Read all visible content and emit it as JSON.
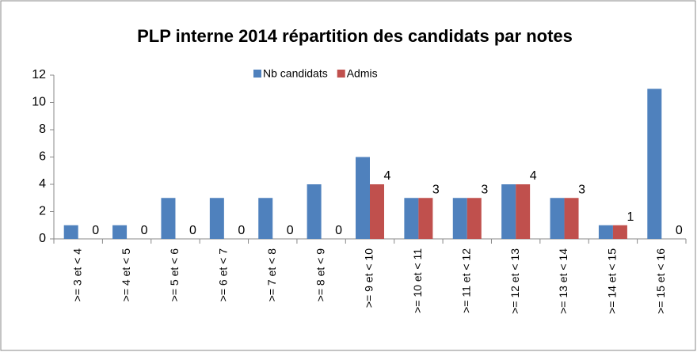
{
  "chart_data": {
    "type": "bar",
    "title": "PLP interne 2014 répartition des candidats par notes",
    "categories": [
      ">= 3 et < 4",
      ">= 4 et < 5",
      ">= 5 et < 6",
      ">= 6 et < 7",
      ">= 7 et < 8",
      ">= 8 et < 9",
      ">= 9 et < 10",
      ">= 10 et < 11",
      ">= 11 et < 12",
      ">= 12 et < 13",
      ">= 13 et < 14",
      ">= 14 et < 15",
      ">= 15 et < 16"
    ],
    "series": [
      {
        "name": "Nb candidats",
        "color": "#4f81bd",
        "values": [
          1,
          1,
          3,
          3,
          3,
          4,
          6,
          3,
          3,
          4,
          3,
          1,
          11
        ]
      },
      {
        "name": "Admis",
        "color": "#c0504d",
        "values": [
          0,
          0,
          0,
          0,
          0,
          0,
          4,
          3,
          3,
          4,
          3,
          1,
          0
        ],
        "data_labels": true
      }
    ],
    "ylim": [
      0,
      12
    ],
    "yticks": [
      0,
      2,
      4,
      6,
      8,
      10,
      12
    ],
    "legend": "top",
    "grid": false
  }
}
